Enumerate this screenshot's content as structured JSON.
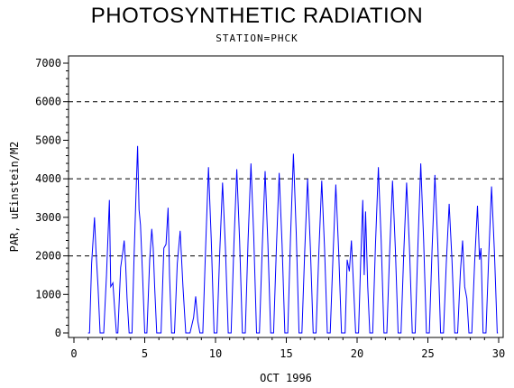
{
  "chart_data": {
    "type": "line",
    "title": "PHOTOSYNTHETIC RADIATION",
    "subtitle": "STATION=PHCK",
    "xlabel": "OCT 1996",
    "ylabel": "PAR, uEinstein/M2",
    "xlim": [
      0,
      30
    ],
    "ylim": [
      0,
      7000
    ],
    "x_ticks": [
      0,
      5,
      10,
      15,
      20,
      25,
      30
    ],
    "y_ticks": [
      0,
      1000,
      2000,
      3000,
      4000,
      5000,
      6000,
      7000
    ],
    "reference_lines": [
      2000,
      4000,
      6000
    ],
    "grid": false,
    "line_color": "#0000ff",
    "series": [
      {
        "name": "",
        "daily_peaks": [
          {
            "day": 1,
            "x": [
              1.1,
              1.25,
              1.35,
              1.45,
              1.55,
              1.7,
              1.85
            ],
            "y": [
              0,
              1800,
              2400,
              3000,
              2200,
              1200,
              0
            ]
          },
          {
            "day": 2,
            "x": [
              2.1,
              2.3,
              2.5,
              2.6,
              2.75,
              2.9,
              3.0
            ],
            "y": [
              0,
              1500,
              3450,
              1200,
              1300,
              500,
              0
            ]
          },
          {
            "day": 3,
            "x": [
              3.1,
              3.3,
              3.45,
              3.55,
              3.65,
              3.75,
              3.9
            ],
            "y": [
              0,
              1700,
              2100,
              2400,
              1800,
              900,
              0
            ]
          },
          {
            "day": 4,
            "x": [
              4.1,
              4.25,
              4.4,
              4.5,
              4.6,
              4.7,
              4.85,
              5.0
            ],
            "y": [
              0,
              2000,
              3800,
              4850,
              3200,
              2800,
              1500,
              0
            ]
          },
          {
            "day": 5,
            "x": [
              5.15,
              5.35,
              5.5,
              5.6,
              5.7,
              5.85
            ],
            "y": [
              0,
              1900,
              2700,
              2200,
              1200,
              0
            ]
          },
          {
            "day": 6,
            "x": [
              6.15,
              6.35,
              6.5,
              6.65,
              6.75,
              6.9
            ],
            "y": [
              0,
              2200,
              2300,
              3250,
              1500,
              0
            ]
          },
          {
            "day": 7,
            "x": [
              7.1,
              7.3,
              7.5,
              7.7,
              7.9
            ],
            "y": [
              0,
              1800,
              2650,
              1200,
              0
            ]
          },
          {
            "day": 8,
            "x": [
              8.2,
              8.45,
              8.6,
              8.75,
              8.9
            ],
            "y": [
              0,
              400,
              950,
              300,
              0
            ]
          },
          {
            "day": 9,
            "x": [
              9.1,
              9.3,
              9.5,
              9.7,
              9.9
            ],
            "y": [
              0,
              2200,
              4300,
              2400,
              0
            ]
          },
          {
            "day": 10,
            "x": [
              10.1,
              10.3,
              10.5,
              10.7,
              10.9
            ],
            "y": [
              0,
              2100,
              3900,
              2200,
              0
            ]
          },
          {
            "day": 11,
            "x": [
              11.1,
              11.3,
              11.5,
              11.7,
              11.9
            ],
            "y": [
              0,
              2300,
              4250,
              2400,
              0
            ]
          },
          {
            "day": 12,
            "x": [
              12.1,
              12.3,
              12.5,
              12.7,
              12.9
            ],
            "y": [
              0,
              2400,
              4400,
              2500,
              0
            ]
          },
          {
            "day": 13,
            "x": [
              13.1,
              13.3,
              13.5,
              13.7,
              13.9
            ],
            "y": [
              0,
              2200,
              4200,
              2300,
              0
            ]
          },
          {
            "day": 14,
            "x": [
              14.1,
              14.3,
              14.5,
              14.7,
              14.9
            ],
            "y": [
              0,
              2200,
              4150,
              2300,
              0
            ]
          },
          {
            "day": 15,
            "x": [
              15.1,
              15.3,
              15.5,
              15.7,
              15.9
            ],
            "y": [
              0,
              2500,
              4650,
              2600,
              0
            ]
          },
          {
            "day": 16,
            "x": [
              16.1,
              16.3,
              16.5,
              16.7,
              16.9
            ],
            "y": [
              0,
              2100,
              4000,
              2200,
              0
            ]
          },
          {
            "day": 17,
            "x": [
              17.1,
              17.3,
              17.5,
              17.7,
              17.9
            ],
            "y": [
              0,
              2100,
              3950,
              2200,
              0
            ]
          },
          {
            "day": 18,
            "x": [
              18.1,
              18.3,
              18.5,
              18.7,
              18.9
            ],
            "y": [
              0,
              2000,
              3850,
              2100,
              0
            ]
          },
          {
            "day": 19,
            "x": [
              19.15,
              19.3,
              19.45,
              19.6,
              19.75,
              19.9
            ],
            "y": [
              0,
              1900,
              1600,
              2400,
              1200,
              0
            ]
          },
          {
            "day": 20,
            "x": [
              20.1,
              20.25,
              20.4,
              20.5,
              20.6,
              20.75,
              20.9
            ],
            "y": [
              0,
              1800,
              3450,
              1500,
              3150,
              1200,
              0
            ]
          },
          {
            "day": 21,
            "x": [
              21.1,
              21.3,
              21.5,
              21.7,
              21.9
            ],
            "y": [
              0,
              2300,
              4300,
              2400,
              0
            ]
          },
          {
            "day": 22,
            "x": [
              22.1,
              22.3,
              22.5,
              22.7,
              22.9
            ],
            "y": [
              0,
              2100,
              3950,
              2200,
              0
            ]
          },
          {
            "day": 23,
            "x": [
              23.1,
              23.3,
              23.5,
              23.7,
              23.9
            ],
            "y": [
              0,
              2100,
              3900,
              2200,
              0
            ]
          },
          {
            "day": 24,
            "x": [
              24.1,
              24.3,
              24.5,
              24.7,
              24.9
            ],
            "y": [
              0,
              2300,
              4400,
              2400,
              0
            ]
          },
          {
            "day": 25,
            "x": [
              25.1,
              25.3,
              25.5,
              25.7,
              25.9
            ],
            "y": [
              0,
              2200,
              4100,
              2300,
              0
            ]
          },
          {
            "day": 26,
            "x": [
              26.1,
              26.3,
              26.5,
              26.7,
              26.9
            ],
            "y": [
              0,
              1800,
              3350,
              1900,
              0
            ]
          },
          {
            "day": 27,
            "x": [
              27.1,
              27.3,
              27.45,
              27.6,
              27.75,
              27.9
            ],
            "y": [
              0,
              1600,
              2400,
              1200,
              900,
              0
            ]
          },
          {
            "day": 28,
            "x": [
              28.1,
              28.3,
              28.5,
              28.65,
              28.75,
              28.9
            ],
            "y": [
              0,
              1800,
              3300,
              1900,
              2200,
              0
            ]
          },
          {
            "day": 29,
            "x": [
              29.1,
              29.3,
              29.5,
              29.7,
              29.9
            ],
            "y": [
              0,
              2000,
              3800,
              2100,
              0
            ]
          }
        ]
      }
    ]
  }
}
